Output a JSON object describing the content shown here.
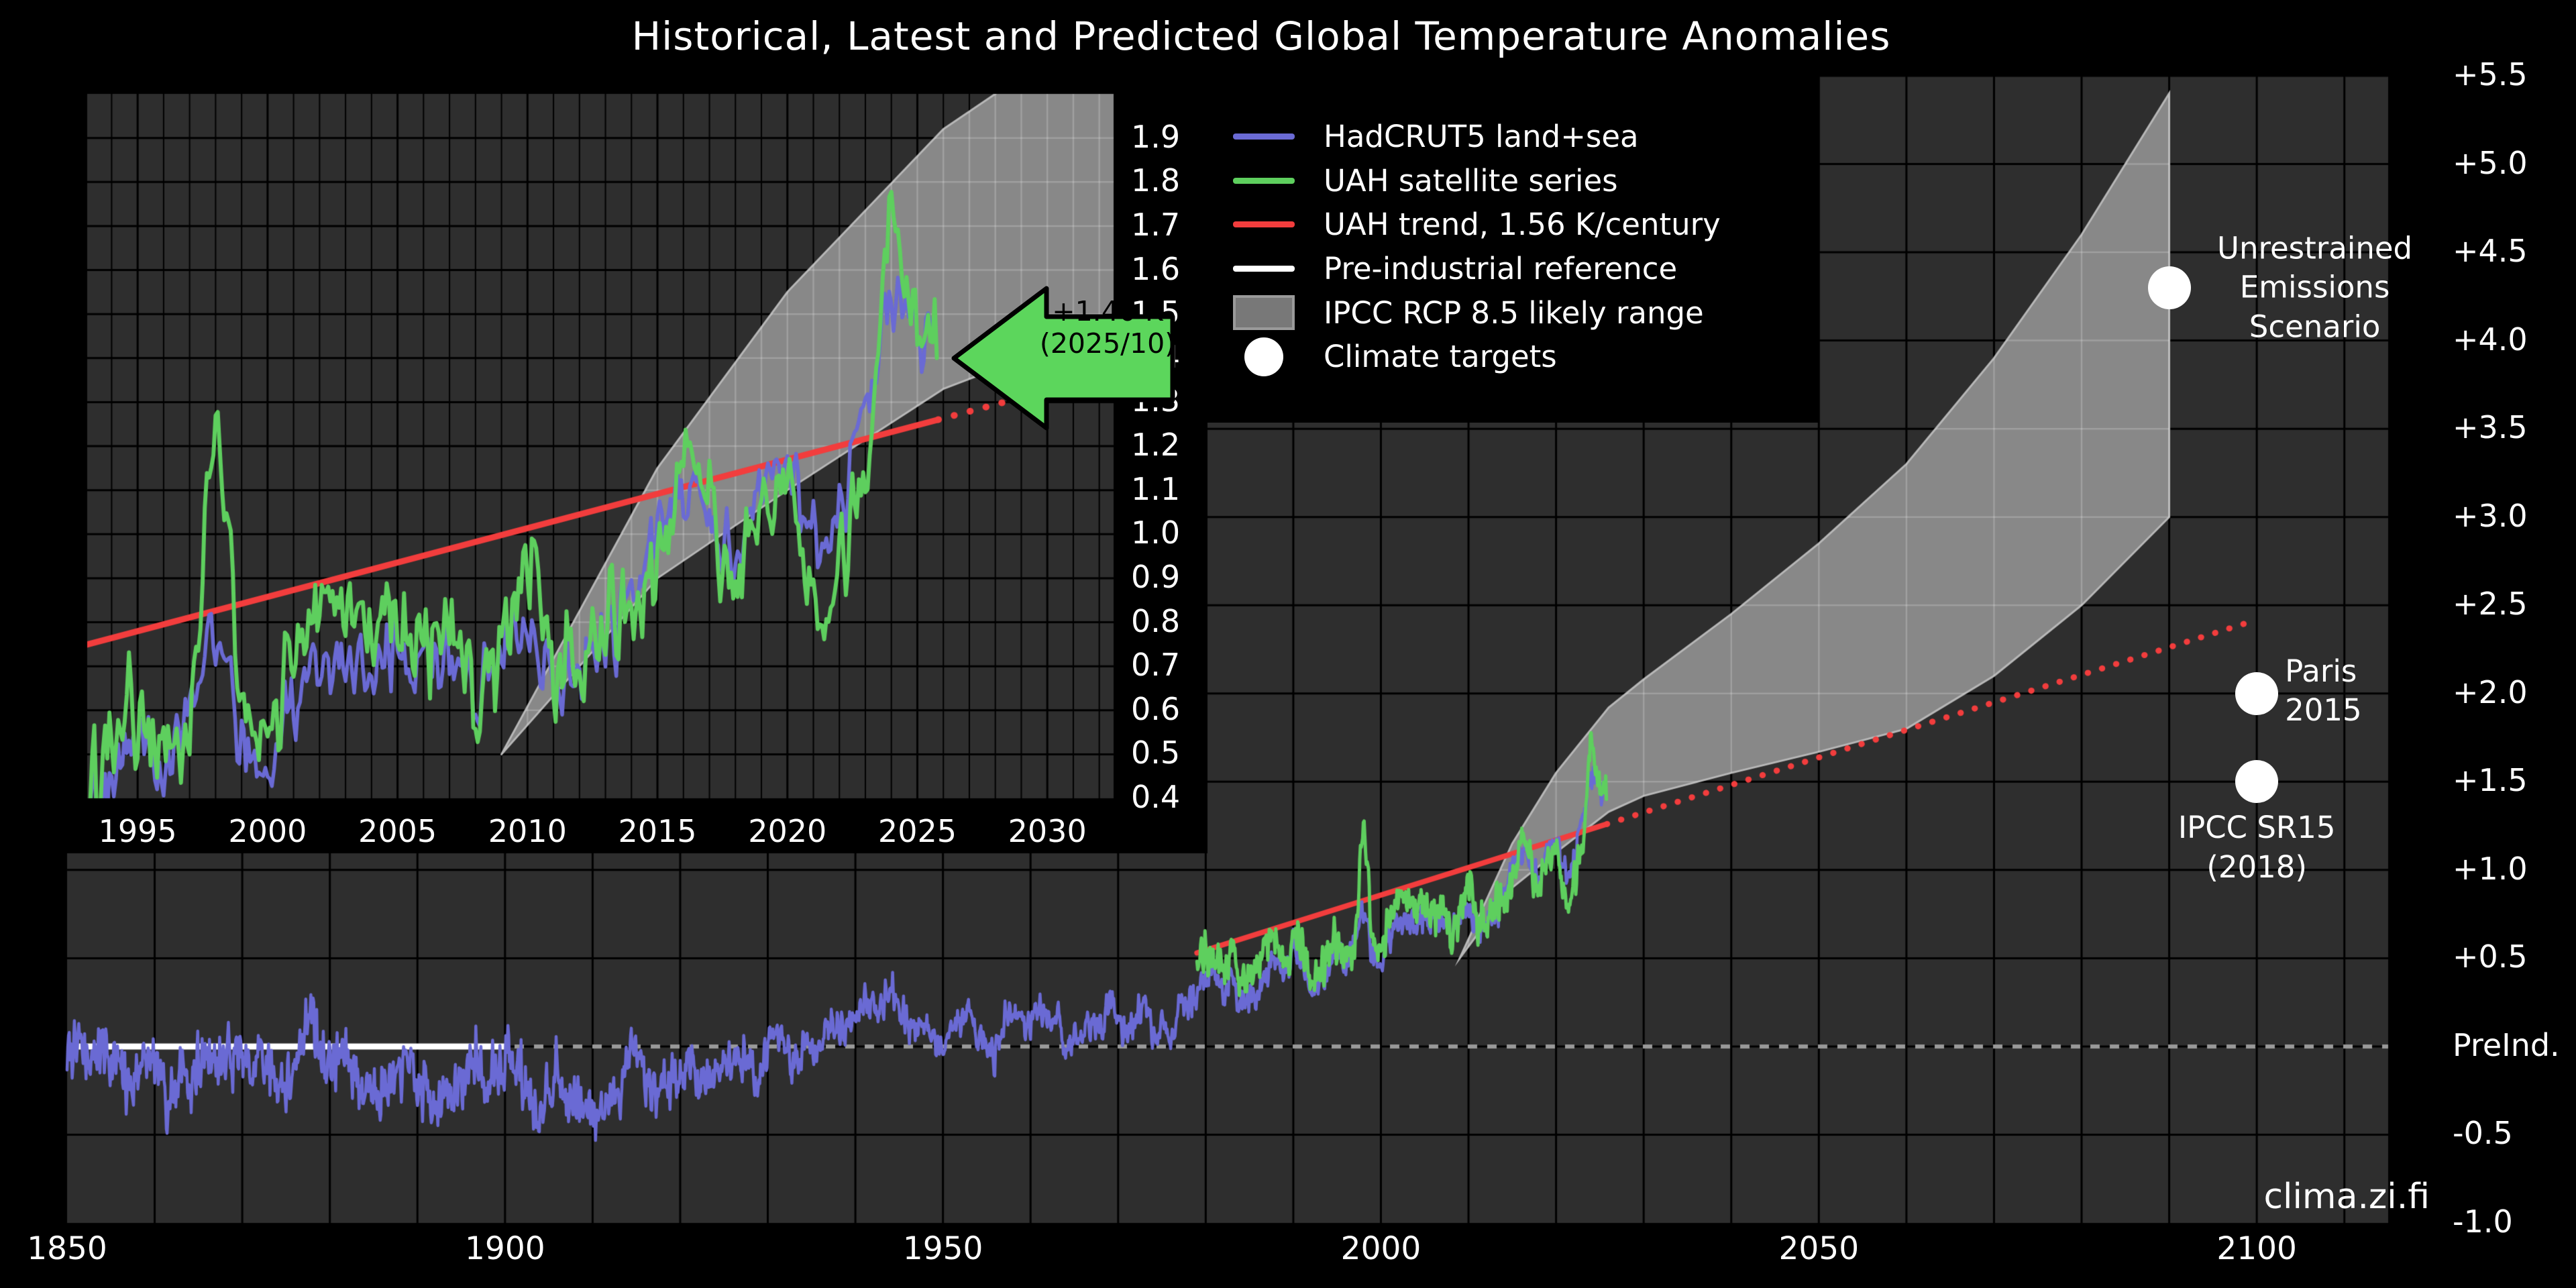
{
  "title": "Historical, Latest and Predicted Global Temperature Anomalies",
  "watermark": "clima.zi.fi",
  "colors": {
    "background": "#000000",
    "plot_bg": "#2e2e2e",
    "grid": "#000000",
    "hadcrut5": "#6a6ad4",
    "uah": "#5ecf5e",
    "trend": "#f23d3d",
    "preindustrial": "#ffffff",
    "preindustrial_dotted": "#999999",
    "band": "#909090",
    "band_edge": "#b8b8b8",
    "arrow_fill": "#5cd65c",
    "arrow_border": "#000000",
    "target_dot": "#ffffff"
  },
  "legend": {
    "items": [
      {
        "sample": "line",
        "color": "#6a6ad4",
        "label": "HadCRUT5 land+sea"
      },
      {
        "sample": "line",
        "color": "#5ecf5e",
        "label": "UAH satellite series"
      },
      {
        "sample": "line",
        "color": "#f23d3d",
        "label": "UAH trend, 1.56 K/century"
      },
      {
        "sample": "line",
        "color": "#ffffff",
        "label": "Pre-industrial reference"
      },
      {
        "sample": "patch",
        "color": "#787878",
        "label": "IPCC RCP 8.5 likely range"
      },
      {
        "sample": "circle",
        "color": "#ffffff",
        "label": "Climate targets"
      }
    ]
  },
  "chart_data": {
    "type": "line",
    "title": "Historical, Latest and Predicted Global Temperature Anomalies",
    "main_axis": {
      "xlim": [
        1850,
        2115
      ],
      "ylim": [
        -1.0,
        5.5
      ],
      "x_ticks": [
        1850,
        1900,
        1950,
        2000,
        2050,
        2100
      ],
      "y_ticks": [
        {
          "value": 5.5,
          "label": "+5.5"
        },
        {
          "value": 5.0,
          "label": "+5.0"
        },
        {
          "value": 4.5,
          "label": "+4.5"
        },
        {
          "value": 4.0,
          "label": "+4.0"
        },
        {
          "value": 3.5,
          "label": "+3.5"
        },
        {
          "value": 3.0,
          "label": "+3.0"
        },
        {
          "value": 2.5,
          "label": "+2.5"
        },
        {
          "value": 2.0,
          "label": "+2.0"
        },
        {
          "value": 1.5,
          "label": "+1.5"
        },
        {
          "value": 1.0,
          "label": "+1.0"
        },
        {
          "value": 0.5,
          "label": "+0.5"
        },
        {
          "value": 0.0,
          "label": "PreInd."
        },
        {
          "value": -0.5,
          "label": "-0.5"
        },
        {
          "value": -1.0,
          "label": "-1.0"
        }
      ],
      "x_grid_step": 10,
      "y_grid_step": 0.5
    },
    "inset_axis": {
      "xlim": [
        1993.06,
        2032.55
      ],
      "ylim": [
        0.4,
        2.0
      ],
      "x_ticks": [
        1995,
        2000,
        2005,
        2010,
        2015,
        2020,
        2025,
        2030
      ],
      "y_ticks": [
        "1.9",
        "1.8",
        "1.7",
        "1.6",
        "1.5",
        "1.4",
        "1.3",
        "1.2",
        "1.1",
        "1.0",
        "0.9",
        "0.8",
        "0.7",
        "0.6",
        "0.5",
        "0.4"
      ],
      "x_grid_step": 1,
      "x_grid_major_step": 5,
      "y_grid_step": 0.1
    },
    "series": {
      "hadcrut5": {
        "name": "HadCRUT5 land+sea",
        "start_year": 1850,
        "end": 2025.58,
        "final_value": 1.46,
        "annual": [
          0.0,
          -0.02,
          -0.03,
          -0.07,
          -0.02,
          -0.05,
          -0.13,
          -0.25,
          -0.15,
          -0.05,
          -0.15,
          -0.2,
          -0.3,
          -0.08,
          -0.25,
          -0.08,
          -0.05,
          -0.1,
          -0.02,
          -0.05,
          -0.05,
          -0.15,
          -0.05,
          -0.1,
          -0.15,
          -0.2,
          -0.15,
          0.1,
          0.2,
          -0.05,
          -0.1,
          -0.05,
          -0.05,
          -0.15,
          -0.25,
          -0.25,
          -0.2,
          -0.25,
          -0.15,
          -0.05,
          -0.3,
          -0.2,
          -0.3,
          -0.3,
          -0.25,
          -0.2,
          -0.05,
          -0.1,
          -0.25,
          -0.15,
          -0.05,
          -0.1,
          -0.2,
          -0.3,
          -0.35,
          -0.2,
          -0.15,
          -0.3,
          -0.35,
          -0.35,
          -0.35,
          -0.35,
          -0.3,
          -0.25,
          -0.05,
          0.0,
          -0.25,
          -0.3,
          -0.2,
          -0.15,
          -0.15,
          -0.1,
          -0.2,
          -0.15,
          -0.15,
          -0.1,
          0.0,
          -0.05,
          -0.05,
          -0.25,
          0.0,
          0.05,
          0.0,
          -0.1,
          0.0,
          -0.05,
          0.0,
          0.1,
          0.15,
          0.1,
          0.2,
          0.3,
          0.2,
          0.2,
          0.35,
          0.25,
          0.1,
          0.1,
          0.1,
          0.05,
          -0.05,
          0.1,
          0.15,
          0.25,
          0.05,
          0.0,
          -0.05,
          0.15,
          0.2,
          0.15,
          0.1,
          0.2,
          0.15,
          0.2,
          -0.05,
          0.05,
          0.1,
          0.15,
          0.1,
          0.25,
          0.2,
          0.05,
          0.15,
          0.3,
          0.05,
          0.15,
          0.0,
          0.3,
          0.2,
          0.3,
          0.4,
          0.45,
          0.25,
          0.45,
          0.25,
          0.25,
          0.3,
          0.45,
          0.5,
          0.4,
          0.55,
          0.5,
          0.35,
          0.35,
          0.45,
          0.55,
          0.45,
          0.65,
          0.75,
          0.5,
          0.5,
          0.65,
          0.7,
          0.7,
          0.65,
          0.75,
          0.7,
          0.75,
          0.6,
          0.75,
          0.8,
          0.65,
          0.7,
          0.75,
          0.85,
          1.0,
          1.1,
          1.05,
          0.95,
          1.1,
          1.15,
          1.0,
          1.05,
          1.3,
          1.55,
          1.45
        ]
      },
      "uah": {
        "name": "UAH satellite series",
        "start_year": 1979,
        "end": 2025.75,
        "final_value": 1.4,
        "annual": [
          0.45,
          0.55,
          0.5,
          0.38,
          0.62,
          0.38,
          0.36,
          0.45,
          0.62,
          0.6,
          0.45,
          0.6,
          0.62,
          0.4,
          0.42,
          0.52,
          0.62,
          0.52,
          0.6,
          1.25,
          0.58,
          0.58,
          0.72,
          0.85,
          0.82,
          0.72,
          0.85,
          0.72,
          0.85,
          0.55,
          0.75,
          1.0,
          0.68,
          0.75,
          0.8,
          0.82,
          0.9,
          1.2,
          1.05,
          0.88,
          1.05,
          1.12,
          0.85,
          0.92,
          1.15,
          1.72,
          1.48
        ]
      },
      "uah_trend": {
        "name": "UAH trend, 1.56 K/century",
        "slope_k_per_century": 1.56,
        "value_at_1979": 0.53,
        "solid_range": [
          1979,
          2025.8
        ],
        "dotted_range": [
          2025.8,
          2100
        ],
        "value_at_2100": 2.42
      },
      "preindustrial": {
        "name": "Pre-industrial reference",
        "value": 0.0,
        "solid_range": [
          1850,
          1900.5
        ],
        "dotted_range": [
          1850,
          2115
        ]
      },
      "rcp85_band": {
        "name": "IPCC RCP 8.5 likely range",
        "years": [
          2009,
          2015,
          2020,
          2026,
          2030,
          2040,
          2050,
          2060,
          2070,
          2080,
          2090
        ],
        "low": [
          0.5,
          0.9,
          1.1,
          1.33,
          1.42,
          1.55,
          1.67,
          1.8,
          2.1,
          2.5,
          3.0
        ],
        "high": [
          0.5,
          1.15,
          1.55,
          1.92,
          2.08,
          2.45,
          2.85,
          3.3,
          3.9,
          4.6,
          5.4
        ]
      }
    },
    "noise": {
      "shared_weight": 0.8,
      "own_weight": 0.55,
      "hadcrut5_amp_early": 0.2,
      "hadcrut5_amp_late": 0.115,
      "uah_amp": 0.15
    },
    "targets": [
      {
        "name": "unrestrained",
        "year": 2090,
        "value": 4.3,
        "label": "Unrestrained\nEmissions\nScenario"
      },
      {
        "name": "paris",
        "year": 2100,
        "value": 2.0,
        "label": "Paris\n2015"
      },
      {
        "name": "ipcc_sr15",
        "year": 2100,
        "value": 1.5,
        "label": "IPCC SR15\n(2018)"
      }
    ],
    "latest": {
      "label": "+1.40 K",
      "sublabel": "(2025/10)",
      "year": 2025.75,
      "value": 1.4
    }
  }
}
